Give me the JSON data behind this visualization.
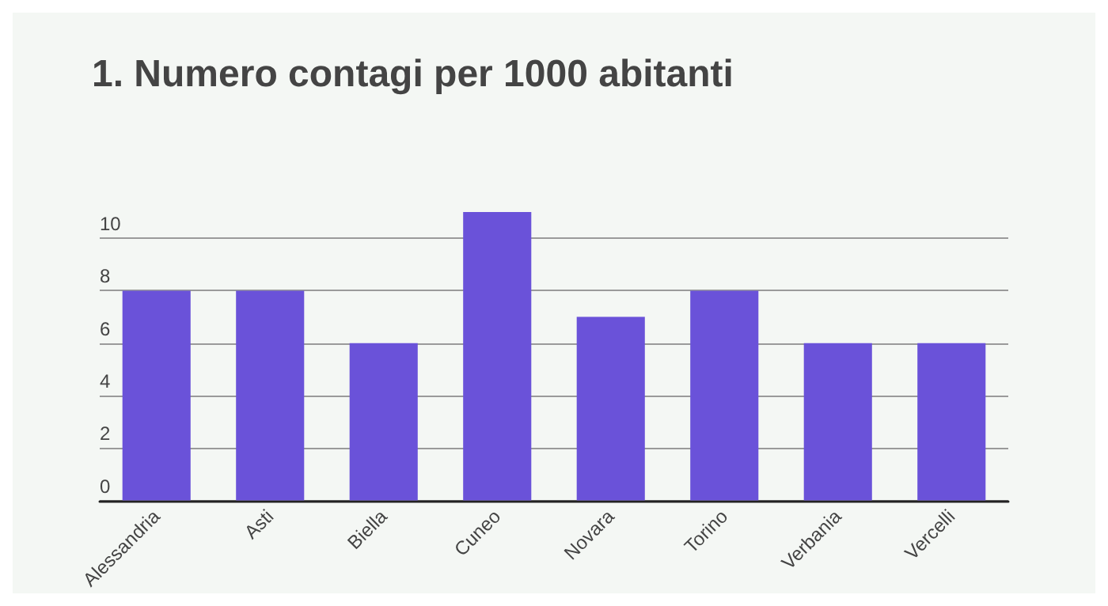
{
  "chart_data": {
    "type": "bar",
    "title": "1. Numero contagi per 1000 abitanti",
    "categories": [
      "Alessandria",
      "Asti",
      "Biella",
      "Cuneo",
      "Novara",
      "Torino",
      "Verbania",
      "Vercelli"
    ],
    "values": [
      8,
      8,
      6,
      11,
      7,
      8,
      6,
      6
    ],
    "color": "#6a52d9",
    "ylim": [
      0,
      11
    ],
    "yticks": [
      0,
      2,
      4,
      6,
      8,
      10
    ],
    "grid": "y"
  }
}
